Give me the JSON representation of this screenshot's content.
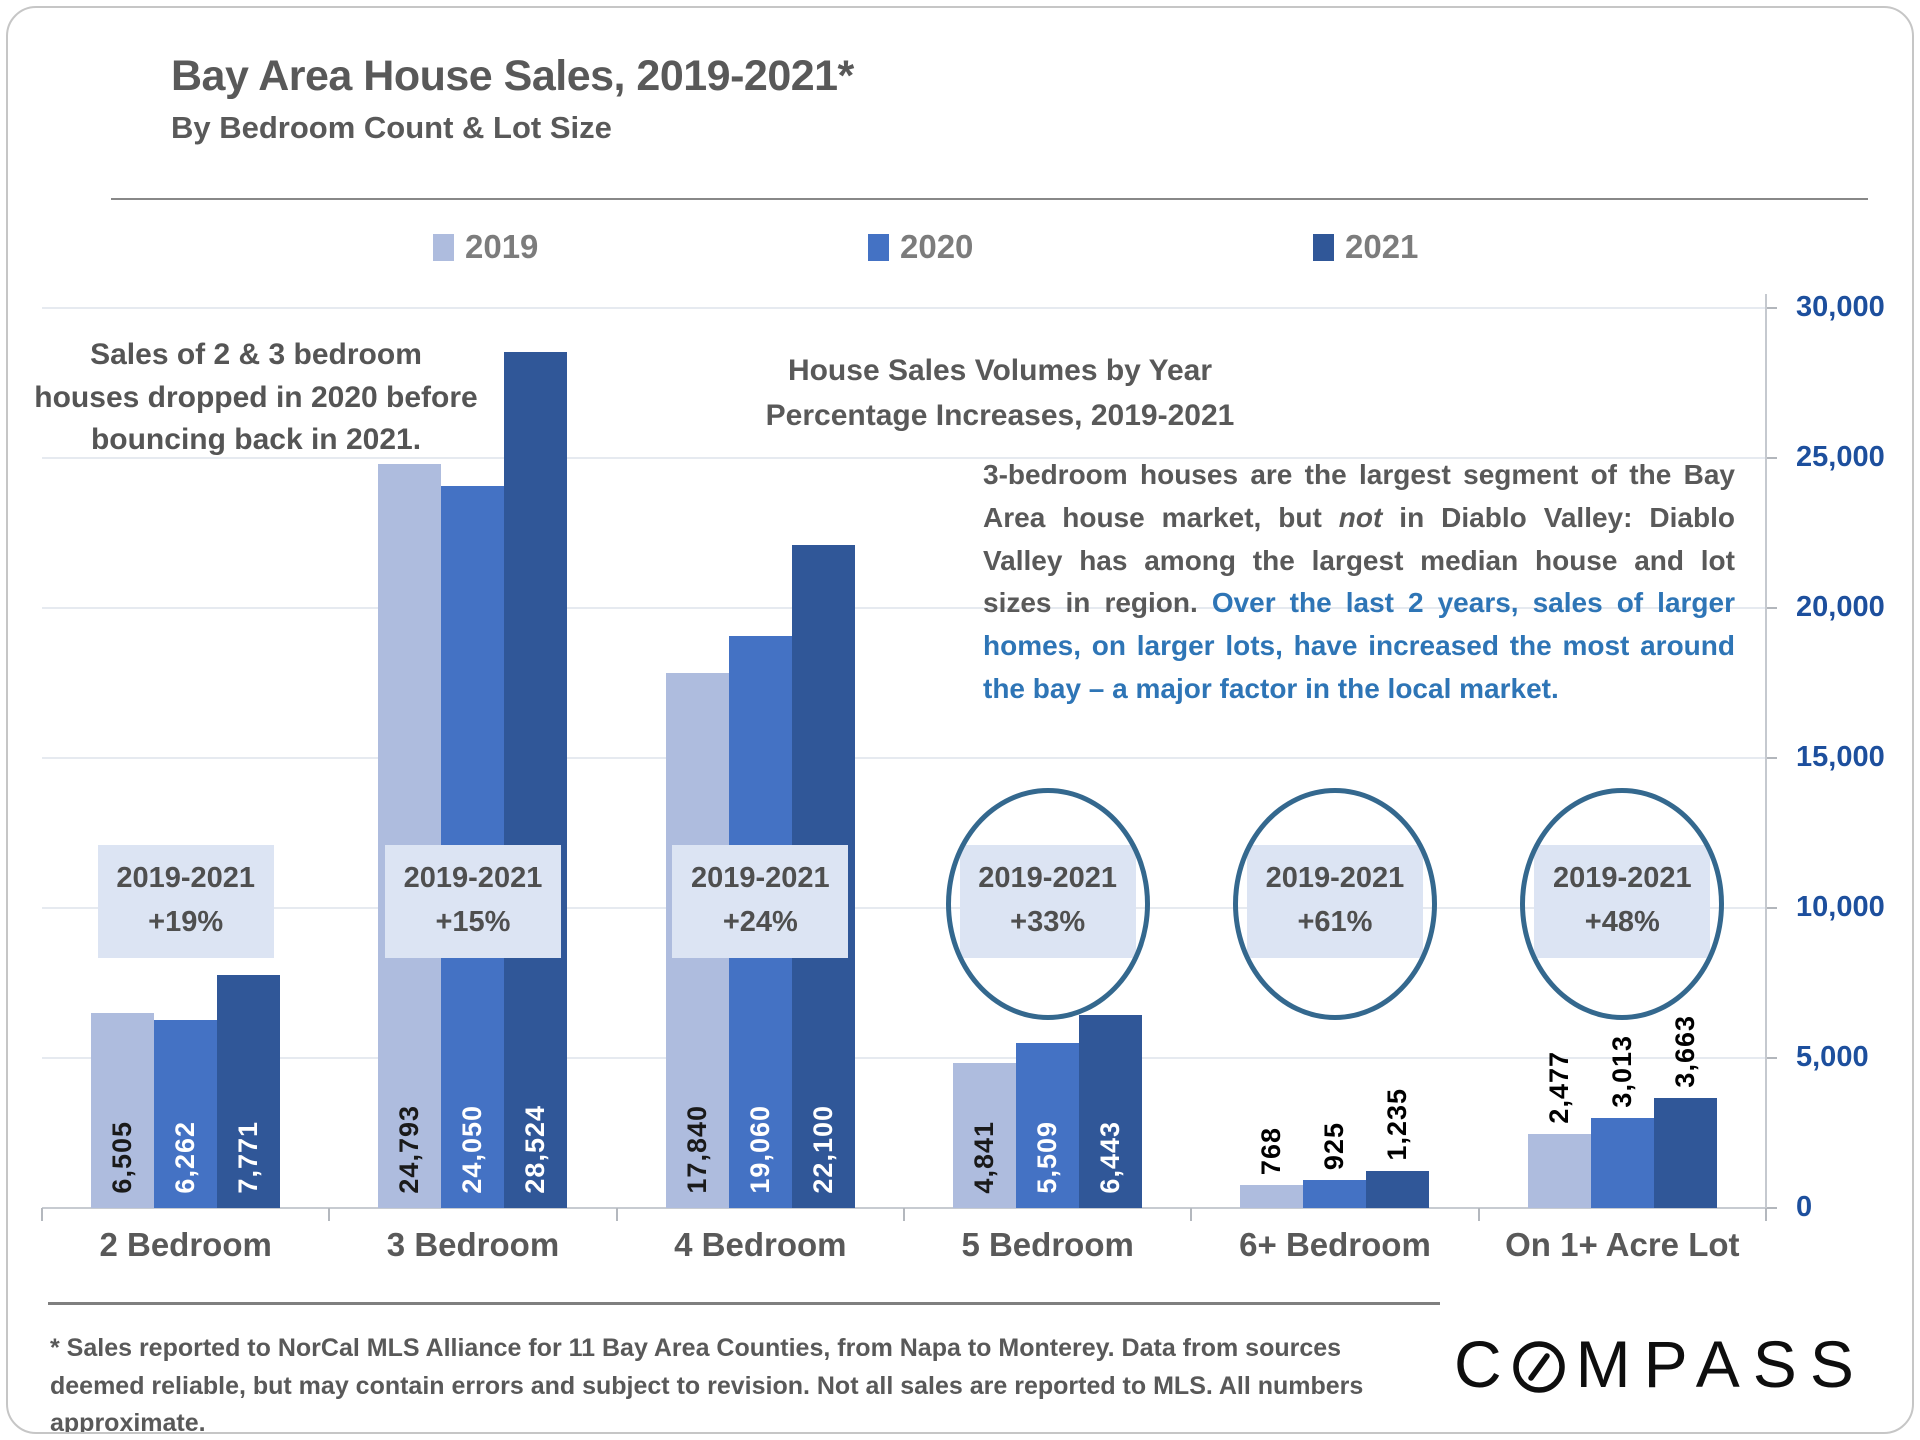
{
  "header": {
    "title": "Bay Area House Sales, 2019-2021*",
    "subtitle": "By Bedroom Count & Lot Size"
  },
  "legend": {
    "items": [
      {
        "label": "2019",
        "color": "#aebcde"
      },
      {
        "label": "2020",
        "color": "#4472c4"
      },
      {
        "label": "2021",
        "color": "#305798"
      }
    ]
  },
  "notes": {
    "left_note": "Sales of 2 & 3 bedroom houses dropped in 2020 before bouncing back in 2021.",
    "center_heading_line1": "House Sales Volumes by Year",
    "center_heading_line2": "Percentage Increases, 2019-2021",
    "paragraph": {
      "gray_before": "3-bedroom houses are the largest segment of the Bay Area house market, but ",
      "italic_word": "not",
      "gray_after": " in Diablo Valley: Diablo Valley has among the largest median house and lot sizes in region. ",
      "blue": "Over the last 2 years, sales of larger homes, on larger lots, have increased the most around the bay – a major factor in the local market."
    }
  },
  "chart_data": {
    "type": "bar",
    "title": "Bay Area House Sales, 2019-2021, By Bedroom Count & Lot Size",
    "categories": [
      "2 Bedroom",
      "3 Bedroom",
      "4 Bedroom",
      "5 Bedroom",
      "6+ Bedroom",
      "On 1+ Acre Lot"
    ],
    "series": [
      {
        "name": "2019",
        "color": "#aebcde",
        "inside_label_color": "#1a1a1a",
        "values": [
          6505,
          24793,
          17840,
          4841,
          768,
          2477
        ],
        "value_labels": [
          "6,505",
          "24,793",
          "17,840",
          "4,841",
          "768",
          "2,477"
        ]
      },
      {
        "name": "2020",
        "color": "#4472c4",
        "inside_label_color": "#ffffff",
        "values": [
          6262,
          24050,
          19060,
          5509,
          925,
          3013
        ],
        "value_labels": [
          "6,262",
          "24,050",
          "19,060",
          "5,509",
          "925",
          "3,013"
        ]
      },
      {
        "name": "2021",
        "color": "#305798",
        "inside_label_color": "#ffffff",
        "values": [
          7771,
          28524,
          22100,
          6443,
          1235,
          3663
        ],
        "value_labels": [
          "7,771",
          "28,524",
          "22,100",
          "6,443",
          "1,235",
          "3,663"
        ]
      }
    ],
    "label_position_per_category": [
      "inside",
      "inside",
      "inside",
      "inside",
      "above",
      "above"
    ],
    "increase_badges": [
      {
        "range": "2019-2021",
        "pct": "+19%",
        "circled": false
      },
      {
        "range": "2019-2021",
        "pct": "+15%",
        "circled": false
      },
      {
        "range": "2019-2021",
        "pct": "+24%",
        "circled": false
      },
      {
        "range": "2019-2021",
        "pct": "+33%",
        "circled": true
      },
      {
        "range": "2019-2021",
        "pct": "+61%",
        "circled": true
      },
      {
        "range": "2019-2021",
        "pct": "+48%",
        "circled": true
      }
    ],
    "ylim": [
      0,
      30000
    ],
    "ytick_labels": [
      "30,000",
      "25,000",
      "20,000",
      "15,000",
      "10,000",
      "5,000",
      "0"
    ],
    "value_axis_side": "right",
    "grid": true,
    "legend_position": "top"
  },
  "footnote": "* Sales reported to NorCal MLS Alliance for 11 Bay Area Counties, from Napa to Monterey. Data from sources deemed reliable, but may contain errors and subject to revision.  Not all sales are reported to MLS. All numbers approximate.",
  "logo": {
    "first_letter": "C",
    "rest_letters": "MPASS"
  }
}
